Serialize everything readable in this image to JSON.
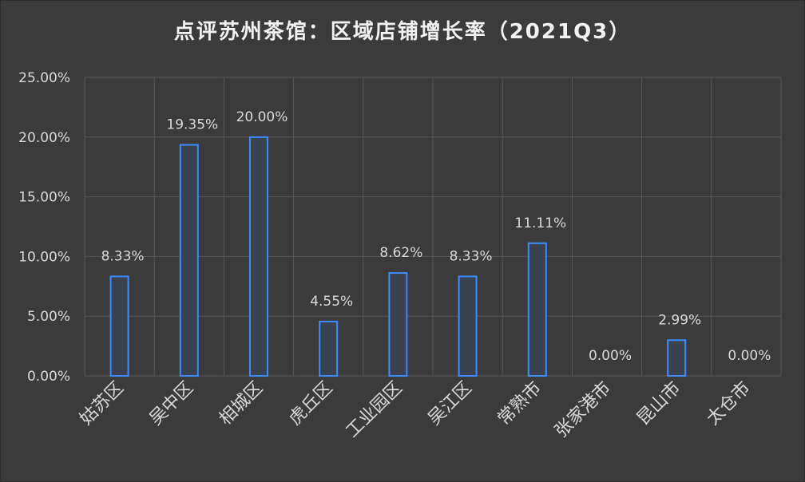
{
  "chart_data": {
    "type": "bar",
    "title": "点评苏州茶馆：区域店铺增长率（2021Q3）",
    "categories": [
      "姑苏区",
      "吴中区",
      "相城区",
      "虎丘区",
      "工业园区",
      "吴江区",
      "常熟市",
      "张家港市",
      "昆山市",
      "太仓市"
    ],
    "values": [
      8.33,
      19.35,
      20.0,
      4.55,
      8.62,
      8.33,
      11.11,
      0.0,
      2.99,
      0.0
    ],
    "data_labels": [
      "8.33%",
      "19.35%",
      "20.00%",
      "4.55%",
      "8.62%",
      "8.33%",
      "11.11%",
      "0.00%",
      "2.99%",
      "0.00%"
    ],
    "yticks": [
      "0.00%",
      "5.00%",
      "10.00%",
      "15.00%",
      "20.00%",
      "25.00%"
    ],
    "ylim": [
      0,
      25
    ],
    "xlabel": "",
    "ylabel": "",
    "grid": true,
    "legend": "none",
    "colors": {
      "background": "#3b3b3b",
      "grid": "#595959",
      "bar_fill": "#3a4250",
      "bar_stroke": "#3d8bff",
      "text": "#d9d9d9",
      "title": "#f2f2f2"
    }
  }
}
